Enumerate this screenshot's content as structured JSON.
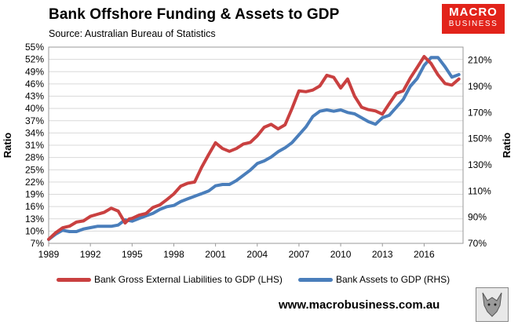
{
  "header": {
    "title": "Bank Offshore Funding & Assets to GDP",
    "source": "Source:   Australian Bureau of Statistics"
  },
  "logo": {
    "line1": "MACRO",
    "line2": "BUSINESS"
  },
  "footer": {
    "url": "www.macrobusiness.com.au"
  },
  "colors": {
    "lhs": "#c94040",
    "rhs": "#4a7ebb",
    "grid": "#d9d9d9",
    "logo_bg": "#e2231a"
  },
  "chart_data": {
    "type": "line",
    "title": "Bank Offshore Funding & Assets to GDP",
    "xlabel": "",
    "ylabel_left": "Ratio",
    "ylabel_right": "Ratio",
    "x_ticks": [
      "1989",
      "1992",
      "1995",
      "1998",
      "2001",
      "2004",
      "2007",
      "2010",
      "2013",
      "2016"
    ],
    "x_range": [
      1989,
      2018.8
    ],
    "y_left_ticks": [
      "7%",
      "10%",
      "13%",
      "16%",
      "19%",
      "22%",
      "25%",
      "28%",
      "31%",
      "34%",
      "37%",
      "40%",
      "43%",
      "46%",
      "49%",
      "52%",
      "55%"
    ],
    "y_left_range": [
      7,
      55
    ],
    "y_right_ticks": [
      "70%",
      "90%",
      "110%",
      "130%",
      "150%",
      "170%",
      "190%",
      "210%"
    ],
    "y_right_range": [
      70,
      220
    ],
    "grid": "horizontal",
    "series": [
      {
        "name": "Bank Gross External Liabilities to GDP (LHS)",
        "axis": "left",
        "x": [
          1989,
          1989.5,
          1990,
          1990.5,
          1991,
          1991.5,
          1992,
          1992.5,
          1993,
          1993.5,
          1994,
          1994.5,
          1994.8,
          1995,
          1995.5,
          1996,
          1996.5,
          1997,
          1997.5,
          1998,
          1998.5,
          1999,
          1999.5,
          2000,
          2000.5,
          2001,
          2001.5,
          2002,
          2002.5,
          2003,
          2003.5,
          2004,
          2004.5,
          2005,
          2005.5,
          2006,
          2006.5,
          2007,
          2007.5,
          2008,
          2008.5,
          2009,
          2009.5,
          2010,
          2010.5,
          2011,
          2011.5,
          2012,
          2012.5,
          2013,
          2013.5,
          2014,
          2014.5,
          2015,
          2015.5,
          2016,
          2016.5,
          2017,
          2017.5,
          2018,
          2018.5
        ],
        "values": [
          8.0,
          9.6,
          10.8,
          11.2,
          12.2,
          12.5,
          13.6,
          14.1,
          14.6,
          15.6,
          14.9,
          12.0,
          13.0,
          13.1,
          13.9,
          14.3,
          15.8,
          16.4,
          17.7,
          19.1,
          21.0,
          21.7,
          22.0,
          25.6,
          28.7,
          31.6,
          30.2,
          29.5,
          30.2,
          31.3,
          31.7,
          33.3,
          35.4,
          36.1,
          35.0,
          36.0,
          40.0,
          44.3,
          44.1,
          44.5,
          45.5,
          48.1,
          47.6,
          45.0,
          47.2,
          43.0,
          40.3,
          39.7,
          39.4,
          38.6,
          41.2,
          43.7,
          44.3,
          47.4,
          50.0,
          52.7,
          51.0,
          48.2,
          46.1,
          45.7,
          47.2
        ]
      },
      {
        "name": "Bank Assets to GDP (RHS)",
        "axis": "right",
        "x": [
          1989,
          1989.5,
          1990,
          1990.5,
          1991,
          1991.5,
          1992,
          1992.5,
          1993,
          1993.5,
          1994,
          1994.5,
          1995,
          1995.5,
          1996,
          1996.5,
          1997,
          1997.5,
          1998,
          1998.5,
          1999,
          1999.5,
          2000,
          2000.5,
          2001,
          2001.5,
          2002,
          2002.5,
          2003,
          2003.5,
          2004,
          2004.5,
          2005,
          2005.5,
          2006,
          2006.5,
          2007,
          2007.5,
          2008,
          2008.5,
          2009,
          2009.5,
          2010,
          2010.5,
          2011,
          2011.5,
          2012,
          2012.5,
          2013,
          2013.5,
          2014,
          2014.5,
          2015,
          2015.5,
          2016,
          2016.5,
          2017,
          2017.5,
          2018,
          2018.5
        ],
        "values": [
          73,
          77,
          80,
          79,
          79,
          81,
          82,
          83,
          83,
          83,
          84,
          88,
          87,
          89,
          91,
          93,
          96,
          98,
          99,
          102,
          104,
          106,
          108,
          110,
          114,
          115,
          115,
          118,
          122,
          126,
          131,
          133,
          136,
          140,
          143,
          147,
          153,
          159,
          167,
          171,
          172,
          171,
          172,
          170,
          169,
          166,
          163,
          161,
          166,
          168,
          174,
          180,
          190,
          196,
          206,
          212,
          212,
          205,
          197,
          199
        ]
      }
    ]
  }
}
